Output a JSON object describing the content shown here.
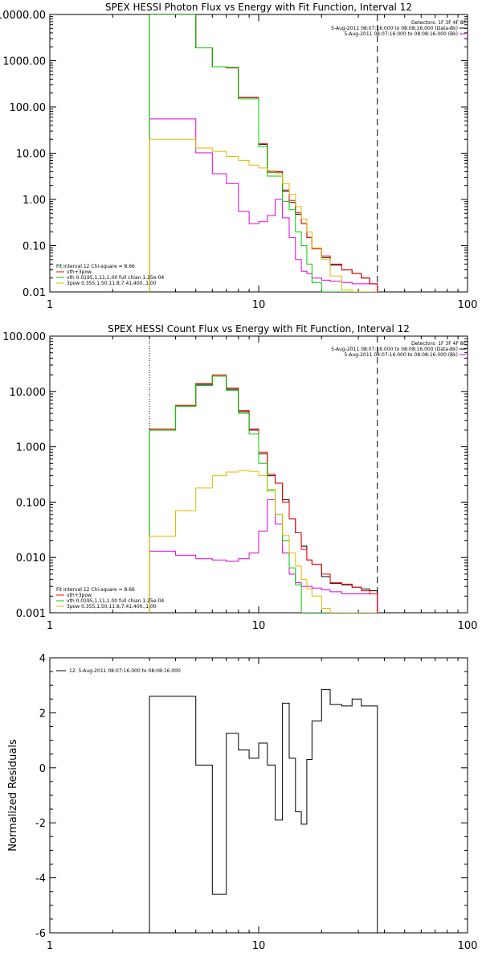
{
  "chart_data": [
    {
      "type": "line",
      "title": "SPEX HESSI Photon Flux vs Energy with Fit Function, Interval 12",
      "x_scale": "log",
      "y_scale": "log",
      "xlim": [
        1,
        100
      ],
      "ylim": [
        0.01,
        10000
      ],
      "x_ticks": [
        "1",
        "10",
        "100"
      ],
      "y_ticks": [
        "0.01",
        "0.10",
        "1.00",
        "10.00",
        "100.00",
        "1000.00",
        "10000.00"
      ],
      "y_tick_values": [
        0.01,
        0.1,
        1,
        10,
        100,
        1000,
        10000
      ],
      "markers": [
        {
          "x": 3.0,
          "style": "dotted"
        },
        {
          "x": 37.0,
          "style": "dashed"
        }
      ],
      "info_top": [
        "Detectors: 1F 3F 4F 8F",
        "5-Aug-2011 08:07:16.000 to 08:08:16.000 (Data-Bk)",
        "5-Aug-2011 08:07:16.000 to 08:08:16.000 (Bk)"
      ],
      "info_bottom": [
        "Fit Interval 12   Chi-square = 8.66",
        "vth+3pow",
        "vth 0.0195,1.11,1.00  full chian 1.25e-04",
        "3pow 0.355,1.50,11.8,7.41,400.,1.00"
      ],
      "bin_edges": [
        3.0,
        4.0,
        5.0,
        6.0,
        7.0,
        8.0,
        9.0,
        10.0,
        11.0,
        12.0,
        13.0,
        14.0,
        15.0,
        16.0,
        17.0,
        18.0,
        20.0,
        22.0,
        25.0,
        28.0,
        31.0,
        34.0,
        37.0
      ],
      "series": [
        {
          "name": "Data-Bk",
          "color": "#000000",
          "values": [
            10000,
            10000,
            1900,
            740,
            720,
            160,
            160,
            15.5,
            3.9,
            3.9,
            1.5,
            0.86,
            0.48,
            0.3,
            0.15,
            0.085,
            0.055,
            0.038,
            0.03,
            0.025,
            0.02,
            0.015
          ]
        },
        {
          "name": "Bk",
          "color": "#dd00dd",
          "values": [
            55,
            55,
            10.2,
            3.6,
            2.2,
            0.55,
            0.3,
            0.33,
            0.45,
            1.0,
            0.4,
            0.15,
            0.05,
            0.028,
            0.025,
            0.02,
            0.018,
            0.017,
            0.016,
            0.015,
            0.015,
            0.015
          ]
        },
        {
          "name": "vth+3pow",
          "color": "#ff0000",
          "values": [
            10000,
            10000,
            1900,
            740,
            700,
            160,
            160,
            16,
            4.2,
            4.0,
            1.6,
            0.95,
            0.52,
            0.3,
            0.15,
            0.085,
            0.06,
            0.04,
            0.03,
            0.025,
            0.02,
            0.015
          ]
        },
        {
          "name": "vth",
          "color": "#00cc00",
          "values": [
            10000,
            10000,
            1900,
            740,
            720,
            150,
            150,
            14,
            3.2,
            3.2,
            0.9,
            0.6,
            0.2,
            0.1,
            0.04,
            0.016,
            0.01,
            0.01,
            0.01,
            0.01,
            0.01,
            0.01
          ]
        },
        {
          "name": "3pow",
          "color": "#ddbb00",
          "values": [
            20,
            20,
            13,
            11,
            8.5,
            7,
            5.5,
            4.8,
            4.2,
            3.6,
            2.2,
            1.3,
            0.7,
            0.38,
            0.2,
            0.09,
            0.05,
            0.022,
            0.011,
            0.01,
            0.01,
            0.01
          ]
        }
      ]
    },
    {
      "type": "line",
      "title": "SPEX HESSI Count Flux vs Energy with Fit Function, Interval 12",
      "x_scale": "log",
      "y_scale": "log",
      "xlim": [
        1,
        100
      ],
      "ylim": [
        0.001,
        100
      ],
      "x_ticks": [
        "1",
        "10",
        "100"
      ],
      "y_ticks": [
        "0.001",
        "0.010",
        "0.100",
        "1.000",
        "10.000",
        "100.000"
      ],
      "y_tick_values": [
        0.001,
        0.01,
        0.1,
        1,
        10,
        100
      ],
      "markers": [
        {
          "x": 3.0,
          "style": "dotted"
        },
        {
          "x": 37.0,
          "style": "dashed"
        }
      ],
      "info_top": [
        "Detectors: 1F 3F 4F 8F",
        "5-Aug-2011 08:07:16.000 to 08:08:16.000 (Data-Bk)",
        "5-Aug-2011 08:07:16.000 to 08:08:16.000 (Bk)"
      ],
      "info_bottom": [
        "Fit Interval 12   Chi-square = 8.66",
        "vth+3pow",
        "vth 0.0195,1.11,1.00  full chian 1.25e-04",
        "3pow 0.355,1.50,11.8,7.41,400.,1.00"
      ],
      "bin_edges": [
        3.0,
        4.0,
        5.0,
        6.0,
        7.0,
        8.0,
        9.0,
        10.0,
        11.0,
        12.0,
        13.0,
        14.0,
        15.0,
        16.0,
        17.0,
        18.0,
        20.0,
        22.0,
        25.0,
        28.0,
        31.0,
        34.0,
        37.0
      ],
      "series": [
        {
          "name": "Data-Bk",
          "color": "#000000",
          "values": [
            2.0,
            5.5,
            13.0,
            19.0,
            11.0,
            4.3,
            2.0,
            0.75,
            0.3,
            0.22,
            0.11,
            0.05,
            0.028,
            0.016,
            0.009,
            0.0075,
            0.0045,
            0.0034,
            0.0032,
            0.0029,
            0.0027,
            0.0025
          ]
        },
        {
          "name": "Bk",
          "color": "#dd00dd",
          "values": [
            0.013,
            0.011,
            0.0095,
            0.009,
            0.0085,
            0.0095,
            0.012,
            0.03,
            0.11,
            0.04,
            0.012,
            0.005,
            0.0035,
            0.003,
            0.003,
            0.0028,
            0.0026,
            0.0024,
            0.0022,
            0.0022,
            0.0022,
            0.0022
          ]
        },
        {
          "name": "vth+3pow",
          "color": "#ff0000",
          "values": [
            2.1,
            5.6,
            14.0,
            20.0,
            11.5,
            4.5,
            2.1,
            0.8,
            0.32,
            0.22,
            0.1,
            0.05,
            0.028,
            0.014,
            0.009,
            0.0075,
            0.005,
            0.0035,
            0.0033,
            0.0029,
            0.0025,
            0.0022
          ]
        },
        {
          "name": "vth",
          "color": "#00cc00",
          "values": [
            2.0,
            5.4,
            13.5,
            19.0,
            10.5,
            4.0,
            1.7,
            0.5,
            0.16,
            0.06,
            0.02,
            0.0065,
            0.0032,
            0.001,
            0.001,
            0.001,
            0.001,
            0.001,
            0.001,
            0.001,
            0.001,
            0.001
          ]
        },
        {
          "name": "3pow",
          "color": "#ddbb00",
          "values": [
            0.024,
            0.07,
            0.18,
            0.3,
            0.35,
            0.37,
            0.36,
            0.3,
            0.17,
            0.06,
            0.025,
            0.012,
            0.007,
            0.004,
            0.0027,
            0.002,
            0.0012,
            0.001,
            0.001,
            0.001,
            0.001,
            0.001
          ]
        }
      ]
    },
    {
      "type": "line",
      "title": "",
      "ylabel": "Normalized Residuals",
      "x_scale": "log",
      "y_scale": "linear",
      "xlim": [
        1,
        100
      ],
      "ylim": [
        -6,
        4
      ],
      "x_ticks": [
        "1",
        "10",
        "100"
      ],
      "y_ticks": [
        "-6",
        "-4",
        "-2",
        "0",
        "2",
        "4"
      ],
      "y_tick_values": [
        -6,
        -4,
        -2,
        0,
        2,
        4
      ],
      "legend": "12. 5-Aug-2011 08:07:16.000 to 08:08:16.000",
      "bin_edges": [
        3.0,
        4.0,
        5.0,
        6.0,
        7.0,
        8.0,
        9.0,
        10.0,
        11.0,
        12.0,
        13.0,
        14.0,
        15.0,
        16.0,
        17.0,
        18.0,
        20.0,
        22.0,
        25.0,
        28.0,
        31.0,
        34.0,
        37.0
      ],
      "series": [
        {
          "name": "Residuals",
          "color": "#000000",
          "values": [
            2.6,
            2.6,
            0.1,
            -4.6,
            1.25,
            0.65,
            0.35,
            0.9,
            0.1,
            -1.9,
            2.35,
            0.35,
            -1.6,
            -2.05,
            0.3,
            1.7,
            2.85,
            2.3,
            2.25,
            2.5,
            2.25,
            2.25
          ]
        }
      ]
    }
  ]
}
